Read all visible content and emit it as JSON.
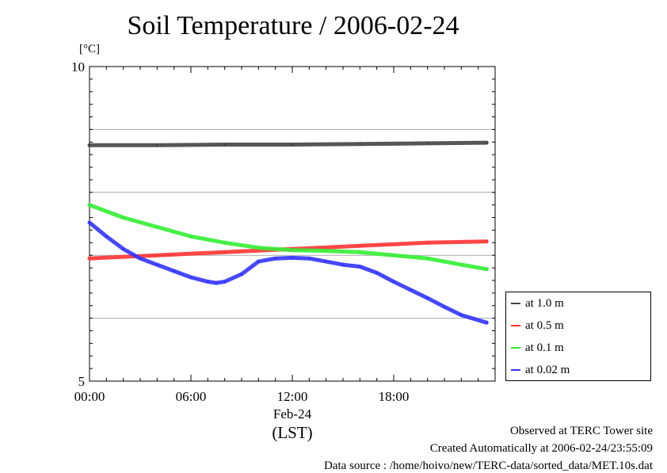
{
  "chart_data": {
    "type": "line",
    "title": "Soil Temperature / 2006-02-24",
    "ylabel": "[°C]",
    "xlabel": "(LST)",
    "ylim": [
      5,
      10
    ],
    "xlim": [
      0,
      24
    ],
    "x_ticks": [
      "00:00",
      "06:00",
      "12:00",
      "18:00"
    ],
    "x_date_label": "Feb-24",
    "y_ticks": [
      "5",
      "10"
    ],
    "grid": true,
    "legend_position": "right",
    "series": [
      {
        "name": "at 1.0 m",
        "color": "#444444",
        "x": [
          0,
          4,
          8,
          12,
          16,
          20,
          23.5
        ],
        "y": [
          8.75,
          8.75,
          8.76,
          8.76,
          8.77,
          8.78,
          8.79
        ]
      },
      {
        "name": "at 0.5 m",
        "color": "#ff3333",
        "x": [
          0,
          4,
          8,
          12,
          16,
          20,
          23.5
        ],
        "y": [
          6.95,
          7.0,
          7.05,
          7.1,
          7.15,
          7.2,
          7.22
        ]
      },
      {
        "name": "at 0.1 m",
        "color": "#33ee33",
        "x": [
          0,
          2,
          4,
          6,
          8,
          10,
          12,
          14,
          16,
          18,
          20,
          22,
          23.5
        ],
        "y": [
          7.8,
          7.6,
          7.45,
          7.3,
          7.2,
          7.12,
          7.08,
          7.07,
          7.05,
          7.0,
          6.95,
          6.85,
          6.78
        ]
      },
      {
        "name": "at 0.02 m",
        "color": "#3333ff",
        "x": [
          0,
          1,
          2,
          3,
          4,
          5,
          6,
          7,
          7.5,
          8,
          9,
          10,
          11,
          12,
          13,
          14,
          15,
          16,
          17,
          18,
          19,
          20,
          21,
          22,
          23.5
        ],
        "y": [
          7.52,
          7.3,
          7.1,
          6.95,
          6.85,
          6.75,
          6.65,
          6.58,
          6.56,
          6.58,
          6.7,
          6.9,
          6.95,
          6.96,
          6.95,
          6.9,
          6.85,
          6.82,
          6.72,
          6.58,
          6.45,
          6.32,
          6.18,
          6.05,
          5.93
        ]
      }
    ]
  },
  "footer": {
    "line1": "Observed at TERC Tower site",
    "line2": "Created Automatically at 2006-02-24/23:55:09",
    "line3": "Data source : /home/hoivo/new/TERC-data/sorted_data/MET.10s.dat"
  }
}
